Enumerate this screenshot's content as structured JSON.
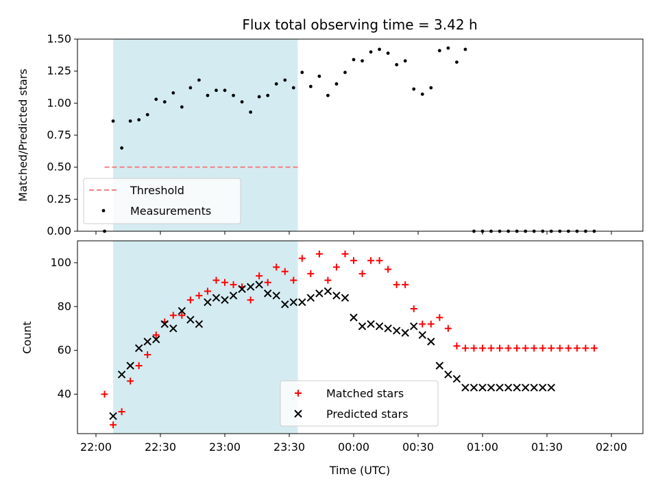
{
  "chart_data": [
    {
      "type": "scatter",
      "title": "Flux total observing time = 3.42 h",
      "xlabel": "",
      "ylabel": "Matched/Predicted stars",
      "ylim": [
        0,
        1.5
      ],
      "yticks": [
        "0.00",
        "0.25",
        "0.50",
        "0.75",
        "1.00",
        "1.25",
        "1.50"
      ],
      "x_axis_type": "time (hours from 22:00)",
      "shaded_interval": [
        "22:08",
        "23:34"
      ],
      "shaded_color": "#d4ebf1",
      "legend_placement": "lower-left",
      "series": [
        {
          "name": "Threshold",
          "style": "dashed-line",
          "color": "#f08080",
          "x": [
            "22:04",
            "23:35"
          ],
          "y": [
            0.5,
            0.5
          ]
        },
        {
          "name": "Measurements",
          "style": "dots",
          "color": "#000000",
          "x": [
            "22:04",
            "22:08",
            "22:12",
            "22:16",
            "22:20",
            "22:24",
            "22:28",
            "22:32",
            "22:36",
            "22:40",
            "22:44",
            "22:48",
            "22:52",
            "22:56",
            "23:00",
            "23:04",
            "23:08",
            "23:12",
            "23:16",
            "23:20",
            "23:24",
            "23:28",
            "23:32",
            "23:36",
            "23:40",
            "23:44",
            "23:48",
            "23:52",
            "23:56",
            "00:00",
            "00:04",
            "00:08",
            "00:12",
            "00:16",
            "00:20",
            "00:24",
            "00:28",
            "00:32",
            "00:36",
            "00:40",
            "00:44",
            "00:48",
            "00:52",
            "00:56",
            "01:00",
            "01:04",
            "01:08",
            "01:12",
            "01:16",
            "01:20",
            "01:24",
            "01:28",
            "01:32",
            "01:36",
            "01:40",
            "01:44",
            "01:48",
            "01:52"
          ],
          "y": [
            0.0,
            0.86,
            0.65,
            0.86,
            0.87,
            0.91,
            1.03,
            1.01,
            1.08,
            0.97,
            1.12,
            1.18,
            1.06,
            1.1,
            1.1,
            1.06,
            1.01,
            0.93,
            1.05,
            1.06,
            1.15,
            1.18,
            1.12,
            1.24,
            1.13,
            1.21,
            1.06,
            1.15,
            1.24,
            1.34,
            1.33,
            1.4,
            1.42,
            1.39,
            1.3,
            1.33,
            1.11,
            1.07,
            1.12,
            1.41,
            1.43,
            1.32,
            1.42,
            0.0,
            0.0,
            0.0,
            0.0,
            0.0,
            0.0,
            0.0,
            0.0,
            0.0,
            0.0,
            0.0,
            0.0,
            0.0,
            0.0,
            0.0
          ]
        }
      ]
    },
    {
      "type": "scatter",
      "title": "",
      "xlabel": "Time (UTC)",
      "ylabel": "Count",
      "ylim": [
        22,
        110
      ],
      "yticks": [
        "40",
        "60",
        "80",
        "100"
      ],
      "xticks": [
        "22:00",
        "22:30",
        "23:00",
        "23:30",
        "00:00",
        "00:30",
        "01:00",
        "01:30",
        "02:00"
      ],
      "shaded_interval": [
        "22:08",
        "23:34"
      ],
      "legend_placement": "lower-center",
      "series": [
        {
          "name": "Matched stars",
          "marker": "plus",
          "color": "#ff0000",
          "x": [
            "22:04",
            "22:08",
            "22:12",
            "22:16",
            "22:20",
            "22:24",
            "22:28",
            "22:32",
            "22:36",
            "22:40",
            "22:44",
            "22:48",
            "22:52",
            "22:56",
            "23:00",
            "23:04",
            "23:08",
            "23:12",
            "23:16",
            "23:20",
            "23:24",
            "23:28",
            "23:32",
            "23:36",
            "23:40",
            "23:44",
            "23:48",
            "23:52",
            "23:56",
            "00:00",
            "00:04",
            "00:08",
            "00:12",
            "00:16",
            "00:20",
            "00:24",
            "00:28",
            "00:32",
            "00:36",
            "00:40",
            "00:44",
            "00:48",
            "00:52",
            "00:56",
            "01:00",
            "01:04",
            "01:08",
            "01:12",
            "01:16",
            "01:20",
            "01:24",
            "01:28",
            "01:32",
            "01:36",
            "01:40",
            "01:44",
            "01:48",
            "01:52"
          ],
          "y": [
            40,
            26,
            32,
            46,
            53,
            58,
            67,
            73,
            76,
            76,
            83,
            85,
            87,
            92,
            91,
            90,
            89,
            83,
            94,
            91,
            98,
            96,
            92,
            102,
            95,
            104,
            92,
            98,
            104,
            101,
            95,
            101,
            101,
            97,
            90,
            90,
            79,
            72,
            72,
            75,
            70,
            62,
            61,
            61,
            61,
            61,
            61,
            61,
            61,
            61,
            61,
            61,
            61,
            61,
            61,
            61,
            61,
            61
          ]
        },
        {
          "name": "Predicted stars",
          "marker": "x",
          "color": "#000000",
          "x": [
            "22:08",
            "22:12",
            "22:16",
            "22:20",
            "22:24",
            "22:28",
            "22:32",
            "22:36",
            "22:40",
            "22:44",
            "22:48",
            "22:52",
            "22:56",
            "23:00",
            "23:04",
            "23:08",
            "23:12",
            "23:16",
            "23:20",
            "23:24",
            "23:28",
            "23:32",
            "23:36",
            "23:40",
            "23:44",
            "23:48",
            "23:52",
            "23:56",
            "00:00",
            "00:04",
            "00:08",
            "00:12",
            "00:16",
            "00:20",
            "00:24",
            "00:28",
            "00:32",
            "00:36",
            "00:40",
            "00:44",
            "00:48",
            "00:52",
            "00:56",
            "01:00",
            "01:04",
            "01:08",
            "01:12",
            "01:16",
            "01:20",
            "01:24",
            "01:28",
            "01:32"
          ],
          "y": [
            30,
            49,
            53,
            61,
            64,
            65,
            72,
            70,
            78,
            74,
            72,
            82,
            84,
            83,
            85,
            88,
            89,
            90,
            86,
            85,
            81,
            82,
            82,
            84,
            86,
            87,
            85,
            84,
            75,
            71,
            72,
            71,
            70,
            69,
            68,
            71,
            67,
            64,
            53,
            49,
            47,
            43,
            43,
            43,
            43,
            43,
            43,
            43,
            43,
            43,
            43,
            43
          ]
        }
      ]
    }
  ]
}
